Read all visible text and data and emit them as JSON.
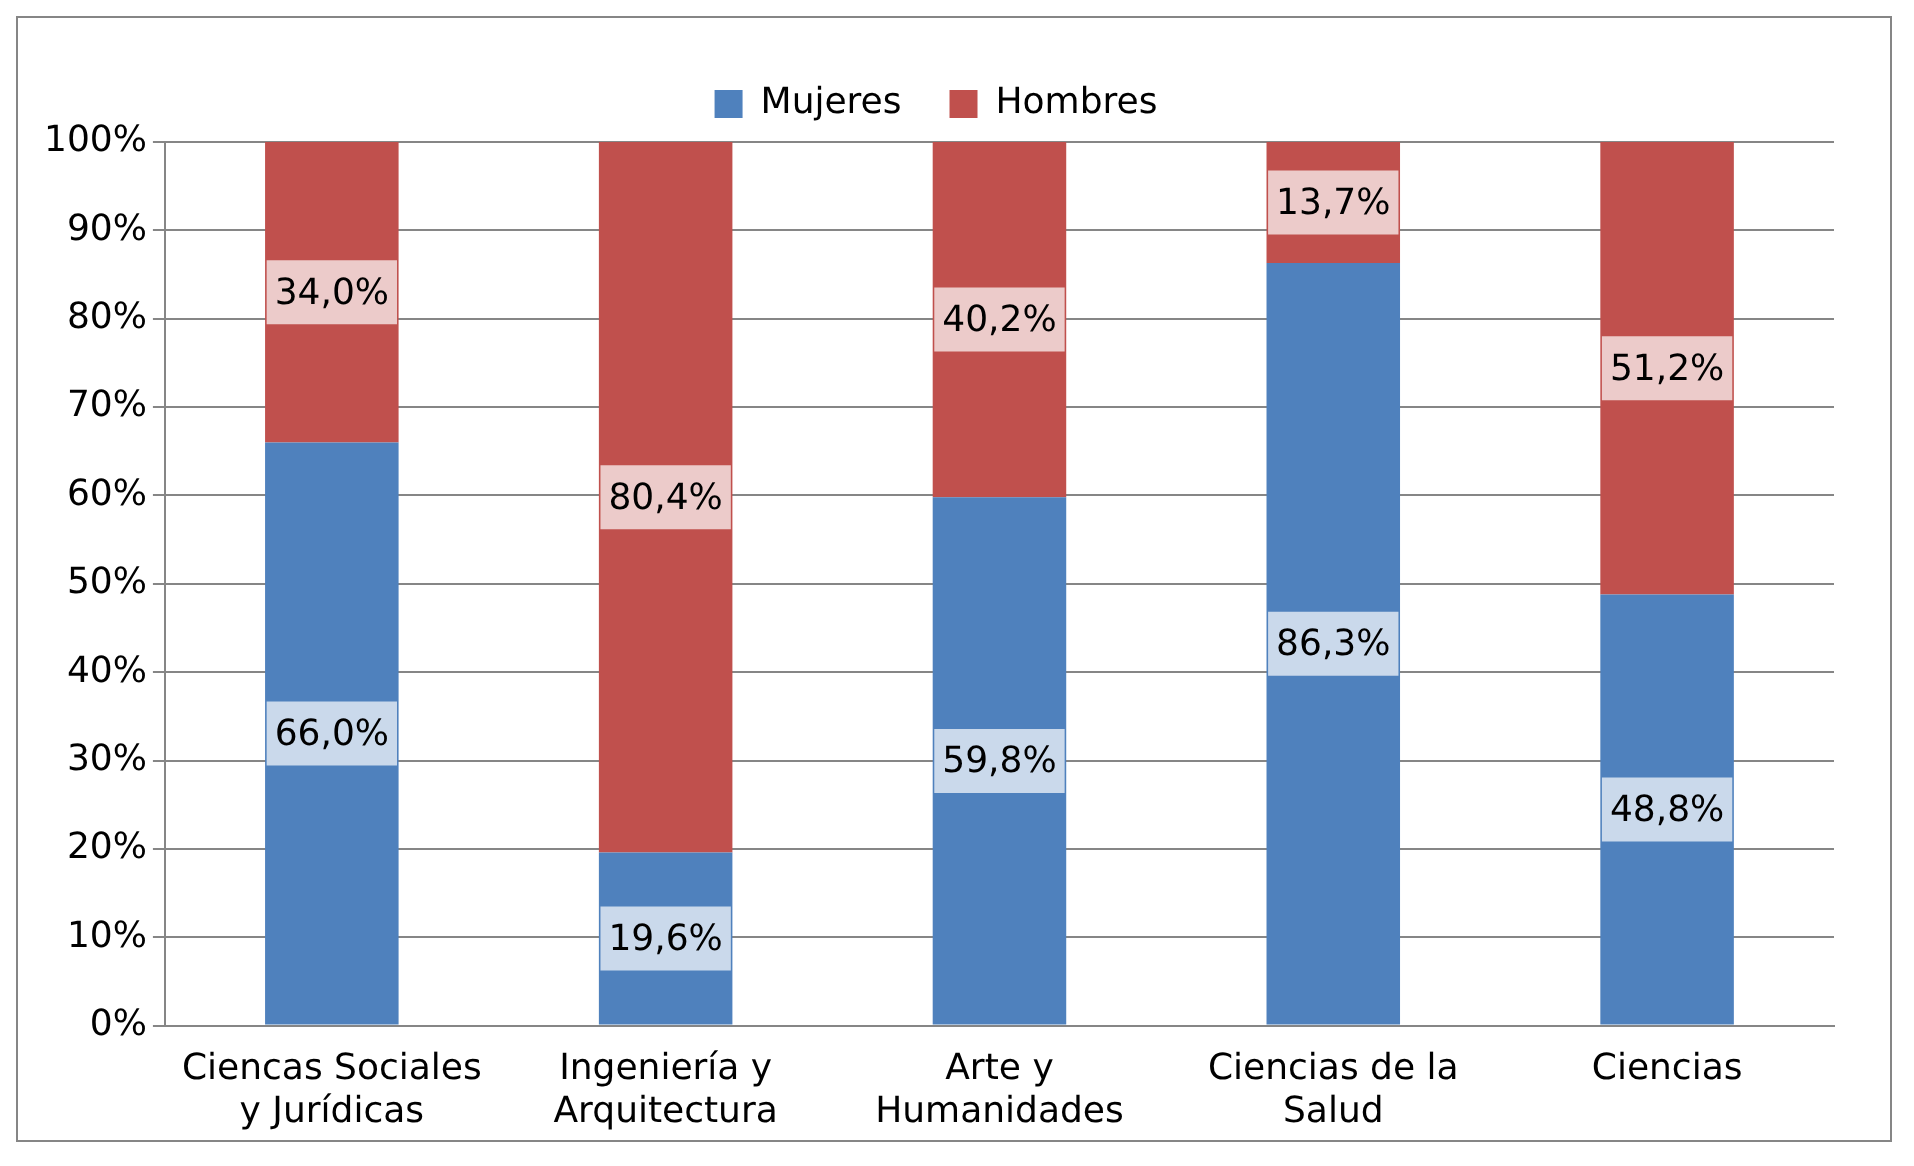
{
  "chart_data": {
    "type": "bar",
    "stacked": true,
    "categories": [
      "Ciencas Sociales y Jurídicas",
      "Ingeniería y Arquitectura",
      "Arte y Humanidades",
      "Ciencias de la Salud",
      "Ciencias"
    ],
    "series": [
      {
        "name": "Mujeres",
        "color": "#4f81bd",
        "values": [
          66.0,
          19.6,
          59.8,
          86.3,
          48.8
        ],
        "value_labels": [
          "66,0%",
          "19,6%",
          "59,8%",
          "86,3%",
          "48,8%"
        ]
      },
      {
        "name": "Hombres",
        "color": "#c0504d",
        "values": [
          34.0,
          80.4,
          40.2,
          13.7,
          51.2
        ],
        "value_labels": [
          "34,0%",
          "80,4%",
          "40,2%",
          "13,7%",
          "51,2%"
        ]
      }
    ],
    "ylim": [
      0,
      100
    ],
    "yticks": [
      {
        "value": 0,
        "label": "0%"
      },
      {
        "value": 10,
        "label": "10%"
      },
      {
        "value": 20,
        "label": "20%"
      },
      {
        "value": 30,
        "label": "30%"
      },
      {
        "value": 40,
        "label": "40%"
      },
      {
        "value": 50,
        "label": "50%"
      },
      {
        "value": 60,
        "label": "60%"
      },
      {
        "value": 70,
        "label": "70%"
      },
      {
        "value": 80,
        "label": "80%"
      },
      {
        "value": 90,
        "label": "90%"
      },
      {
        "value": 100,
        "label": "100%"
      }
    ],
    "grid": "y",
    "legend": "top"
  }
}
